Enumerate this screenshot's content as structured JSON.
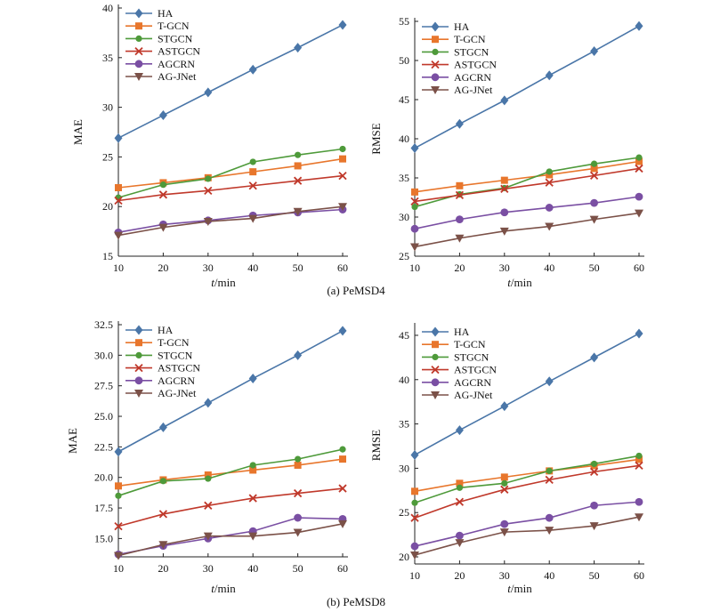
{
  "colors": {
    "HA": "#4a76a8",
    "T-GCN": "#e8762c",
    "STGCN": "#4e9a3a",
    "ASTGCN": "#c0392b",
    "AGCRN": "#7a4fa3",
    "AG-JNet": "#7b5148"
  },
  "captions": {
    "pems04": "(a) PeMSD4",
    "pems08": "(b) PeMSD8"
  },
  "chart_data": [
    {
      "id": "pems04_mae",
      "type": "line",
      "xlabel_italic": "t",
      "xlabel_unit": "/min",
      "ylabel": "MAE",
      "x": [
        10,
        20,
        30,
        40,
        50,
        60
      ],
      "xlim": [
        10,
        60
      ],
      "ylim": [
        15,
        40
      ],
      "yticks": [
        15,
        20,
        25,
        30,
        35,
        40
      ],
      "ytick_labels": [
        "15",
        "20",
        "25",
        "30",
        "35",
        "40"
      ],
      "legend_position": "top-left",
      "series": [
        {
          "name": "HA",
          "values": [
            26.9,
            29.2,
            31.5,
            33.8,
            36.0,
            38.3
          ]
        },
        {
          "name": "T-GCN",
          "values": [
            21.9,
            22.4,
            22.9,
            23.5,
            24.1,
            24.8
          ]
        },
        {
          "name": "STGCN",
          "values": [
            20.9,
            22.2,
            22.8,
            24.5,
            25.2,
            25.8
          ]
        },
        {
          "name": "ASTGCN",
          "values": [
            20.6,
            21.2,
            21.6,
            22.1,
            22.6,
            23.1
          ]
        },
        {
          "name": "AGCRN",
          "values": [
            17.4,
            18.2,
            18.6,
            19.1,
            19.4,
            19.7
          ]
        },
        {
          "name": "AG-JNet",
          "values": [
            17.1,
            17.9,
            18.5,
            18.8,
            19.5,
            20.0
          ]
        }
      ]
    },
    {
      "id": "pems04_rmse",
      "type": "line",
      "xlabel_italic": "t",
      "xlabel_unit": "/min",
      "ylabel": "RMSE",
      "x": [
        10,
        20,
        30,
        40,
        50,
        60
      ],
      "xlim": [
        10,
        60
      ],
      "ylim": [
        25,
        55
      ],
      "yticks": [
        25,
        30,
        35,
        40,
        45,
        50,
        55
      ],
      "ytick_labels": [
        "25",
        "30",
        "35",
        "40",
        "45",
        "50",
        "55"
      ],
      "legend_position": "top-left",
      "series": [
        {
          "name": "HA",
          "values": [
            38.8,
            41.9,
            44.9,
            48.1,
            51.2,
            54.4
          ]
        },
        {
          "name": "T-GCN",
          "values": [
            33.2,
            34.0,
            34.7,
            35.4,
            36.2,
            37.1
          ]
        },
        {
          "name": "STGCN",
          "values": [
            31.3,
            32.9,
            33.7,
            35.8,
            36.8,
            37.6
          ]
        },
        {
          "name": "ASTGCN",
          "values": [
            32.0,
            32.8,
            33.6,
            34.4,
            35.3,
            36.2
          ]
        },
        {
          "name": "AGCRN",
          "values": [
            28.5,
            29.7,
            30.6,
            31.2,
            31.8,
            32.6
          ]
        },
        {
          "name": "AG-JNet",
          "values": [
            26.2,
            27.3,
            28.2,
            28.8,
            29.7,
            30.5
          ]
        }
      ]
    },
    {
      "id": "pems08_mae",
      "type": "line",
      "xlabel_italic": "t",
      "xlabel_unit": "/min",
      "ylabel": "MAE",
      "x": [
        10,
        20,
        30,
        40,
        50,
        60
      ],
      "xlim": [
        10,
        60
      ],
      "ylim": [
        13.5,
        32.5
      ],
      "yticks": [
        15.0,
        17.5,
        20.0,
        22.5,
        25.0,
        27.5,
        30.0,
        32.5
      ],
      "ytick_labels": [
        "15.0",
        "17.5",
        "20.0",
        "22.5",
        "25.0",
        "27.5",
        "30.0",
        "32.5"
      ],
      "legend_position": "top-left",
      "series": [
        {
          "name": "HA",
          "values": [
            22.1,
            24.1,
            26.1,
            28.1,
            30.0,
            32.0
          ]
        },
        {
          "name": "T-GCN",
          "values": [
            19.3,
            19.8,
            20.2,
            20.6,
            21.0,
            21.5
          ]
        },
        {
          "name": "STGCN",
          "values": [
            18.5,
            19.7,
            19.9,
            21.0,
            21.5,
            22.3
          ]
        },
        {
          "name": "ASTGCN",
          "values": [
            16.0,
            17.0,
            17.7,
            18.3,
            18.7,
            19.1
          ]
        },
        {
          "name": "AGCRN",
          "values": [
            13.7,
            14.4,
            15.0,
            15.6,
            16.7,
            16.6
          ]
        },
        {
          "name": "AG-JNet",
          "values": [
            13.6,
            14.5,
            15.2,
            15.2,
            15.5,
            16.2
          ]
        }
      ]
    },
    {
      "id": "pems08_rmse",
      "type": "line",
      "xlabel_italic": "t",
      "xlabel_unit": "/min",
      "ylabel": "RMSE",
      "x": [
        10,
        20,
        30,
        40,
        50,
        60
      ],
      "xlim": [
        10,
        60
      ],
      "ylim": [
        19.2,
        46
      ],
      "yticks": [
        20,
        25,
        30,
        35,
        40,
        45
      ],
      "ytick_labels": [
        "20",
        "25",
        "30",
        "35",
        "40",
        "45"
      ],
      "legend_position": "top-left",
      "series": [
        {
          "name": "HA",
          "values": [
            31.5,
            34.3,
            37.0,
            39.8,
            42.5,
            45.2
          ]
        },
        {
          "name": "T-GCN",
          "values": [
            27.4,
            28.3,
            29.0,
            29.7,
            30.3,
            31.0
          ]
        },
        {
          "name": "STGCN",
          "values": [
            26.1,
            27.8,
            28.3,
            29.7,
            30.5,
            31.4
          ]
        },
        {
          "name": "ASTGCN",
          "values": [
            24.4,
            26.2,
            27.6,
            28.7,
            29.6,
            30.3
          ]
        },
        {
          "name": "AGCRN",
          "values": [
            21.2,
            22.4,
            23.7,
            24.4,
            25.8,
            26.2
          ]
        },
        {
          "name": "AG-JNet",
          "values": [
            20.2,
            21.6,
            22.8,
            23.0,
            23.5,
            24.5
          ]
        }
      ]
    }
  ]
}
